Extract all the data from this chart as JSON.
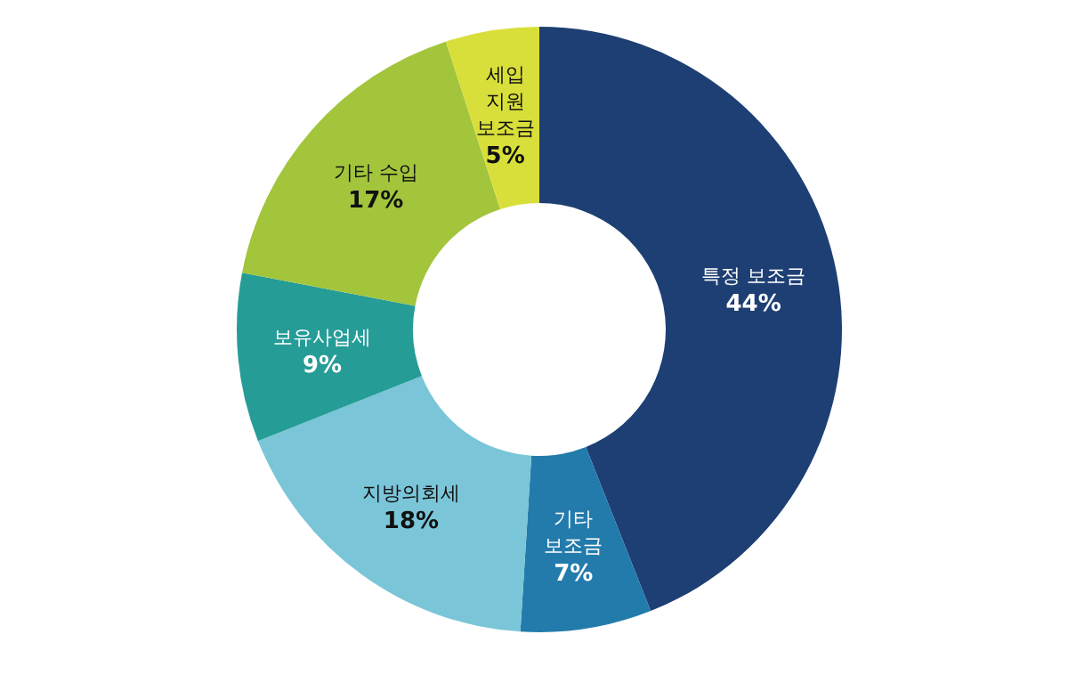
{
  "chart_data": {
    "type": "donut",
    "categories": [
      "특정 보조금",
      "기타\n보조금",
      "지방의회세",
      "보유사업세",
      "기타 수입",
      "세입\n지원\n보조금"
    ],
    "values": [
      44,
      7,
      18,
      9,
      17,
      5
    ],
    "value_labels": [
      "44%",
      "7%",
      "18%",
      "9%",
      "17%",
      "5%"
    ],
    "colors": [
      "#1e3f73",
      "#237bab",
      "#7bc5d8",
      "#269c97",
      "#a3c53c",
      "#d9df3a"
    ]
  }
}
